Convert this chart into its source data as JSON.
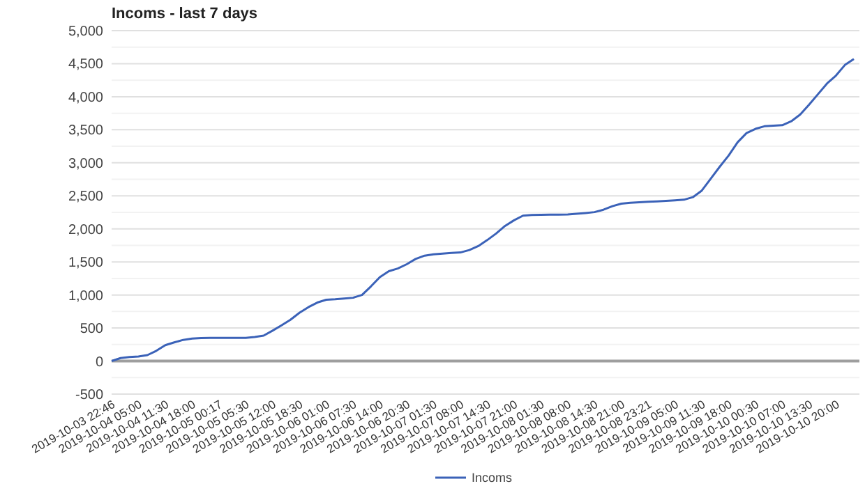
{
  "chart_data": {
    "type": "line",
    "title": "Incoms - last 7 days",
    "categories": [
      "2019-10-03 22:46",
      null,
      null,
      "2019-10-04 05:00",
      null,
      null,
      "2019-10-04 11:30",
      null,
      null,
      "2019-10-04 18:00",
      null,
      null,
      "2019-10-05 00:17",
      null,
      null,
      "2019-10-05 05:30",
      null,
      null,
      "2019-10-05 12:00",
      null,
      null,
      "2019-10-05 18:30",
      null,
      null,
      "2019-10-06 01:00",
      null,
      null,
      "2019-10-06 07:30",
      null,
      null,
      "2019-10-06 14:00",
      null,
      null,
      "2019-10-06 20:30",
      null,
      null,
      "2019-10-07 01:30",
      null,
      null,
      "2019-10-07 08:00",
      null,
      null,
      "2019-10-07 14:30",
      null,
      null,
      "2019-10-07 21:00",
      null,
      null,
      "2019-10-08 01:30",
      null,
      null,
      "2019-10-08 08:00",
      null,
      null,
      "2019-10-08 14:30",
      null,
      null,
      "2019-10-08 21:00",
      null,
      null,
      "2019-10-08 23:21",
      null,
      null,
      "2019-10-09 05:00",
      null,
      null,
      "2019-10-09 11:30",
      null,
      null,
      "2019-10-09 18:00",
      null,
      null,
      "2019-10-10 00:30",
      null,
      null,
      "2019-10-10 07:00",
      null,
      null,
      "2019-10-10 13:30",
      null,
      null,
      "2019-10-10 20:00",
      null,
      null
    ],
    "series": [
      {
        "name": "Incoms",
        "color": "#3b62b8",
        "values": [
          0,
          45,
          62,
          68,
          90,
          155,
          240,
          282,
          320,
          340,
          348,
          350,
          350,
          350,
          350,
          350,
          365,
          385,
          460,
          540,
          625,
          730,
          815,
          885,
          928,
          935,
          945,
          958,
          1000,
          1130,
          1270,
          1360,
          1400,
          1465,
          1545,
          1595,
          1615,
          1625,
          1635,
          1643,
          1680,
          1740,
          1830,
          1930,
          2045,
          2130,
          2200,
          2210,
          2212,
          2215,
          2217,
          2219,
          2228,
          2240,
          2254,
          2290,
          2343,
          2382,
          2395,
          2402,
          2410,
          2417,
          2425,
          2433,
          2441,
          2480,
          2580,
          2760,
          2940,
          3110,
          3310,
          3450,
          3514,
          3553,
          3562,
          3569,
          3628,
          3730,
          3880,
          4040,
          4200,
          4320,
          4480,
          4570
        ]
      }
    ],
    "ylim": [
      -500,
      5000
    ],
    "yticks": [
      {
        "value": -500,
        "label": "-500"
      },
      {
        "value": -250,
        "label": null
      },
      {
        "value": 0,
        "label": "0"
      },
      {
        "value": 250,
        "label": null
      },
      {
        "value": 500,
        "label": "500"
      },
      {
        "value": 750,
        "label": null
      },
      {
        "value": 1000,
        "label": "1,000"
      },
      {
        "value": 1250,
        "label": null
      },
      {
        "value": 1500,
        "label": "1,500"
      },
      {
        "value": 1750,
        "label": null
      },
      {
        "value": 2000,
        "label": "2,000"
      },
      {
        "value": 2250,
        "label": null
      },
      {
        "value": 2500,
        "label": "2,500"
      },
      {
        "value": 2750,
        "label": null
      },
      {
        "value": 3000,
        "label": "3,000"
      },
      {
        "value": 3250,
        "label": null
      },
      {
        "value": 3500,
        "label": "3,500"
      },
      {
        "value": 3750,
        "label": null
      },
      {
        "value": 4000,
        "label": "4,000"
      },
      {
        "value": 4250,
        "label": null
      },
      {
        "value": 4500,
        "label": "4,500"
      },
      {
        "value": 4750,
        "label": null
      },
      {
        "value": 5000,
        "label": "5,000"
      }
    ],
    "grid": "y",
    "ref_lines": [
      {
        "axis": "y",
        "value": 0,
        "color": "#9e9e9e"
      }
    ],
    "legend": "bottom",
    "marker": "none"
  }
}
